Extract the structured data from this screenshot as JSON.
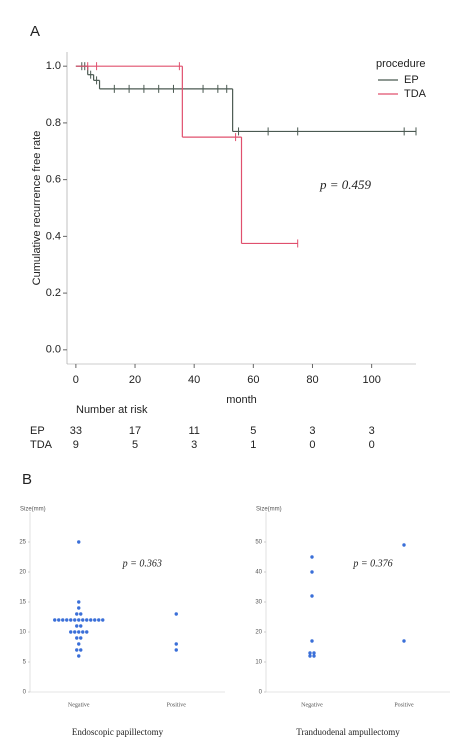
{
  "panel_labels": [
    "A",
    "B"
  ],
  "chart_data": [
    {
      "type": "km",
      "xlabel": "month",
      "ylabel": "Cumulative recurrence free rate",
      "xlim": [
        -3,
        115
      ],
      "xticks": [
        0,
        20,
        40,
        60,
        80,
        100
      ],
      "ylim": [
        -0.05,
        1.05
      ],
      "yticks": [
        {
          "value": 0,
          "label": "0.0"
        },
        0.2,
        0.4,
        0.6,
        0.8,
        {
          "value": 1,
          "label": "1.0"
        }
      ],
      "legend_title": "procedure",
      "legend": "upper right",
      "annotation": "p = 0.459",
      "series": [
        {
          "name": "EP",
          "color": "#4b5a52",
          "x": [
            0,
            4,
            6,
            8,
            53,
            115
          ],
          "values": [
            1.0,
            0.97,
            0.95,
            0.92,
            0.77,
            0.77
          ],
          "censor_x": [
            2,
            3,
            5,
            7,
            13,
            18,
            23,
            28,
            33,
            43,
            48,
            51,
            55,
            65,
            75,
            111,
            115
          ],
          "censor_y": [
            1.0,
            1.0,
            0.97,
            0.95,
            0.92,
            0.92,
            0.92,
            0.92,
            0.92,
            0.92,
            0.92,
            0.92,
            0.77,
            0.77,
            0.77,
            0.77,
            0.77
          ]
        },
        {
          "name": "TDA",
          "color": "#e0506e",
          "x": [
            0,
            36,
            56,
            75
          ],
          "values": [
            1.0,
            0.75,
            0.375,
            0.375
          ],
          "censor_x": [
            4,
            7,
            35,
            54,
            75
          ],
          "censor_y": [
            1.0,
            1.0,
            1.0,
            0.75,
            0.375
          ]
        }
      ],
      "risk_table": {
        "title": "Number at risk",
        "rows": [
          {
            "name": "EP",
            "values": [
              33,
              17,
              11,
              5,
              3,
              3
            ]
          },
          {
            "name": "TDA",
            "values": [
              9,
              5,
              3,
              1,
              0,
              0
            ]
          }
        ]
      }
    },
    {
      "type": "dot",
      "title": "Endoscopic papillectomy",
      "ylabel": "Size(mm)",
      "annotation": "p = 0.363",
      "color": "#3a6fd8",
      "ylim": [
        0,
        30
      ],
      "yticks": [
        0,
        5,
        10,
        15,
        20,
        25
      ],
      "categories": [
        "Negative",
        "Positive"
      ],
      "values": [
        [
          25,
          15,
          14,
          13,
          13,
          12,
          12,
          12,
          12,
          12,
          12,
          12,
          12,
          12,
          12,
          12,
          12,
          12,
          11,
          11,
          10,
          10,
          10,
          10,
          10,
          9,
          9,
          8,
          7,
          7,
          6
        ],
        [
          13,
          8,
          7
        ]
      ]
    },
    {
      "type": "dot",
      "title": "Tranduodenal ampullectomy",
      "ylabel": "Size(mm)",
      "annotation": "p = 0.376",
      "color": "#3a6fd8",
      "ylim": [
        0,
        60
      ],
      "yticks": [
        0,
        10,
        20,
        30,
        40,
        50
      ],
      "categories": [
        "Negative",
        "Positive"
      ],
      "values": [
        [
          45,
          40,
          32,
          17,
          13,
          13,
          12,
          12
        ],
        [
          49,
          17
        ]
      ]
    }
  ]
}
